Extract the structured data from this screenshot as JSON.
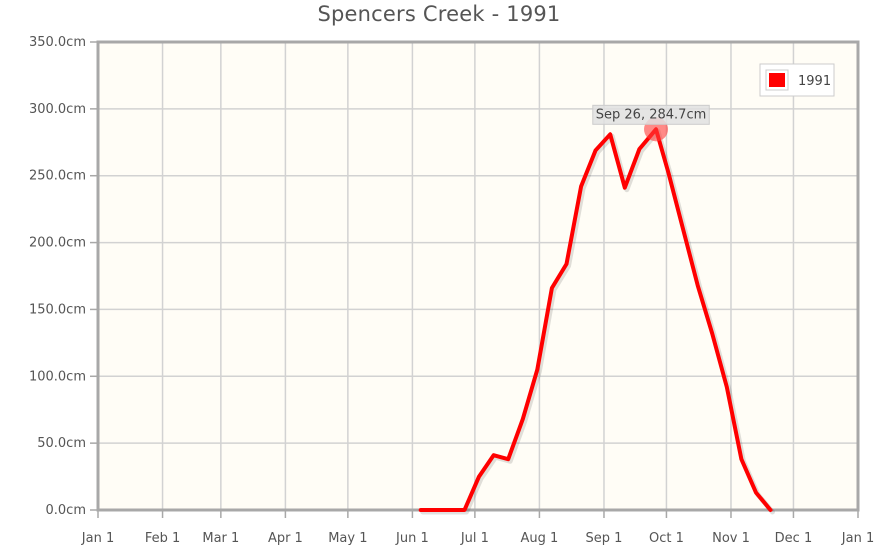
{
  "chart_data": {
    "type": "line",
    "title": "Spencers Creek - 1991",
    "xlabel": "",
    "ylabel": "",
    "x_tick_labels": [
      "Jan 1",
      "Feb 1",
      "Mar 1",
      "Apr 1",
      "May 1",
      "Jun 1",
      "Jul 1",
      "Aug 1",
      "Sep 1",
      "Oct 1",
      "Nov 1",
      "Dec 1",
      "Jan 1"
    ],
    "y_tick_labels": [
      "350.0cm",
      "300.0cm",
      "250.0cm",
      "200.0cm",
      "150.0cm",
      "100.0cm",
      "50.0cm",
      "0.0cm"
    ],
    "ylim": [
      0,
      350
    ],
    "xlim": [
      "1991-01-01",
      "1992-01-01"
    ],
    "grid": true,
    "legend_position": "top-right",
    "series": [
      {
        "name": "1991",
        "color": "#ff0000",
        "points": [
          {
            "x": "1991-06-05",
            "y": 0
          },
          {
            "x": "1991-06-26",
            "y": 0
          },
          {
            "x": "1991-07-03",
            "y": 25
          },
          {
            "x": "1991-07-10",
            "y": 41
          },
          {
            "x": "1991-07-17",
            "y": 38
          },
          {
            "x": "1991-07-24",
            "y": 68
          },
          {
            "x": "1991-07-31",
            "y": 105
          },
          {
            "x": "1991-08-07",
            "y": 166
          },
          {
            "x": "1991-08-14",
            "y": 184
          },
          {
            "x": "1991-08-21",
            "y": 242
          },
          {
            "x": "1991-08-28",
            "y": 269
          },
          {
            "x": "1991-09-04",
            "y": 281
          },
          {
            "x": "1991-09-11",
            "y": 241
          },
          {
            "x": "1991-09-18",
            "y": 270
          },
          {
            "x": "1991-09-26",
            "y": 284.7
          },
          {
            "x": "1991-10-02",
            "y": 252
          },
          {
            "x": "1991-10-09",
            "y": 210
          },
          {
            "x": "1991-10-16",
            "y": 168
          },
          {
            "x": "1991-10-23",
            "y": 132
          },
          {
            "x": "1991-10-30",
            "y": 92
          },
          {
            "x": "1991-11-06",
            "y": 38
          },
          {
            "x": "1991-11-13",
            "y": 13
          },
          {
            "x": "1991-11-20",
            "y": 0
          }
        ]
      }
    ],
    "tooltip": {
      "text": "Sep 26, 284.7cm",
      "x": "1991-09-26",
      "y": 284.7
    }
  }
}
